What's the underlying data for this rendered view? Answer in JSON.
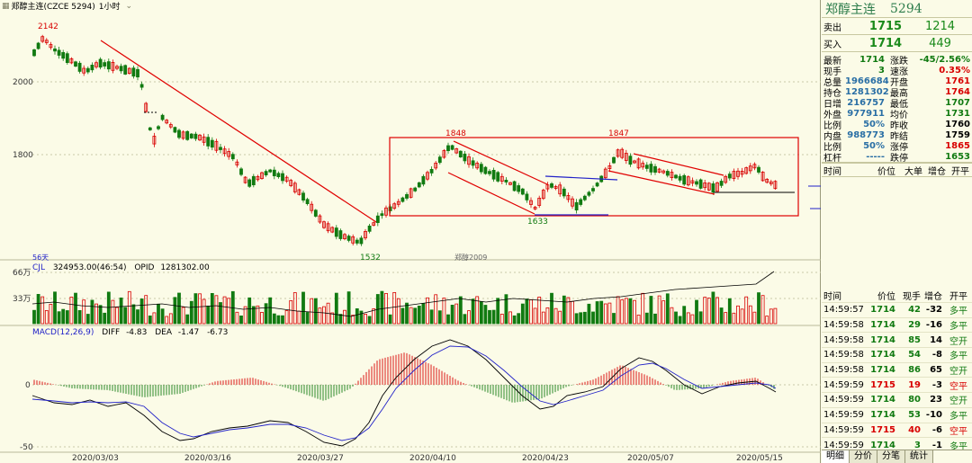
{
  "toolbar": {
    "title": "郑醇主连(CZCE 5294)",
    "period": "1小时"
  },
  "price_labels": {
    "high": "2142",
    "low": "1532",
    "peak1": "1848",
    "trough": "1633",
    "peak2": "1847",
    "mid_label": "郑醇2009",
    "bars_count": "56天"
  },
  "price_axis": [
    "2000",
    "1800"
  ],
  "volume": {
    "header": "CJL",
    "value": "324953.00(46:54)",
    "opid_label": "OPID",
    "opid_value": "1281302.00",
    "axis": [
      "66万",
      "33万"
    ]
  },
  "macd": {
    "header": "MACD(12,26,9)",
    "diff_label": "DIFF",
    "diff_value": "-4.83",
    "dea_label": "DEA",
    "dea_value": "-1.47",
    "macd_value": "-6.73",
    "axis": [
      "0",
      "-50"
    ]
  },
  "dates": [
    "2020/03/03",
    "2020/03/16",
    "2020/03/27",
    "2020/04/10",
    "2020/04/23",
    "2020/05/07",
    "2020/05/15"
  ],
  "quote": {
    "name": "郑醇主连",
    "code": "5294",
    "sell_label": "卖出",
    "sell_price": "1715",
    "sell_vol": "1214",
    "buy_label": "买入",
    "buy_price": "1714",
    "buy_vol": "449",
    "stats": [
      {
        "l1": "最新",
        "v1": "1714",
        "c1": "g",
        "l2": "涨跌",
        "v2": "-45/2.56%",
        "c2": "g"
      },
      {
        "l1": "现手",
        "v1": "3",
        "c1": "g",
        "l2": "速涨",
        "v2": "0.35%",
        "c2": "r"
      },
      {
        "l1": "总量",
        "v1": "1966684",
        "c1": "b",
        "l2": "开盘",
        "v2": "1761",
        "c2": "r"
      },
      {
        "l1": "持仓",
        "v1": "1281302",
        "c1": "b",
        "l2": "最高",
        "v2": "1764",
        "c2": "r"
      },
      {
        "l1": "日增",
        "v1": "216757",
        "c1": "b",
        "l2": "最低",
        "v2": "1707",
        "c2": "g"
      },
      {
        "l1": "外盘",
        "v1": "977911",
        "c1": "b",
        "l2": "均价",
        "v2": "1731",
        "c2": "g"
      },
      {
        "l1": "比例",
        "v1": "50%",
        "c1": "b",
        "l2": "昨收",
        "v2": "1760",
        "c2": "k"
      },
      {
        "l1": "内盘",
        "v1": "988773",
        "c1": "b",
        "l2": "昨结",
        "v2": "1759",
        "c2": "k"
      },
      {
        "l1": "比例",
        "v1": "50%",
        "c1": "b",
        "l2": "涨停",
        "v2": "1865",
        "c2": "r"
      },
      {
        "l1": "杠杆",
        "v1": "-----",
        "c1": "b",
        "l2": "跌停",
        "v2": "1653",
        "c2": "g"
      }
    ],
    "big_hdr": {
      "time": "时间",
      "price": "价位",
      "big": "大单",
      "oi": "增仓",
      "open": "开平"
    },
    "trade_hdr": {
      "time": "时间",
      "price": "价位",
      "qty": "现手",
      "oi": "增仓",
      "type": "开平"
    },
    "trades": [
      {
        "time": "14:59:57",
        "price": "1714",
        "pc": "g",
        "qty": "42",
        "qc": "g",
        "oi": "-32",
        "oc": "k",
        "type": "多平",
        "tc": "g"
      },
      {
        "time": "14:59:58",
        "price": "1714",
        "pc": "g",
        "qty": "29",
        "qc": "g",
        "oi": "-16",
        "oc": "k",
        "type": "多平",
        "tc": "g"
      },
      {
        "time": "14:59:58",
        "price": "1714",
        "pc": "g",
        "qty": "85",
        "qc": "g",
        "oi": "14",
        "oc": "k",
        "type": "空开",
        "tc": "g"
      },
      {
        "time": "14:59:58",
        "price": "1714",
        "pc": "g",
        "qty": "54",
        "qc": "g",
        "oi": "-8",
        "oc": "k",
        "type": "多平",
        "tc": "g"
      },
      {
        "time": "14:59:58",
        "price": "1714",
        "pc": "g",
        "qty": "86",
        "qc": "g",
        "oi": "65",
        "oc": "k",
        "type": "空开",
        "tc": "g"
      },
      {
        "time": "14:59:59",
        "price": "1715",
        "pc": "r",
        "qty": "19",
        "qc": "r",
        "oi": "-3",
        "oc": "k",
        "type": "空平",
        "tc": "r"
      },
      {
        "time": "14:59:59",
        "price": "1714",
        "pc": "g",
        "qty": "80",
        "qc": "g",
        "oi": "23",
        "oc": "k",
        "type": "空开",
        "tc": "g"
      },
      {
        "time": "14:59:59",
        "price": "1714",
        "pc": "g",
        "qty": "53",
        "qc": "g",
        "oi": "-10",
        "oc": "k",
        "type": "多平",
        "tc": "g"
      },
      {
        "time": "14:59:59",
        "price": "1715",
        "pc": "r",
        "qty": "40",
        "qc": "r",
        "oi": "-6",
        "oc": "k",
        "type": "空平",
        "tc": "r"
      },
      {
        "time": "14:59:59",
        "price": "1714",
        "pc": "g",
        "qty": "3",
        "qc": "g",
        "oi": "-1",
        "oc": "k",
        "type": "多平",
        "tc": "g"
      }
    ],
    "tabs": [
      "明细",
      "分价",
      "分笔",
      "统计"
    ]
  },
  "colors": {
    "up": "#d80000",
    "down": "#117a11",
    "trend_line": "#e00000",
    "support_line": "#2222c8",
    "diff_line": "#000000",
    "dea_line": "#2222c8",
    "background": "#fbfbe7"
  }
}
